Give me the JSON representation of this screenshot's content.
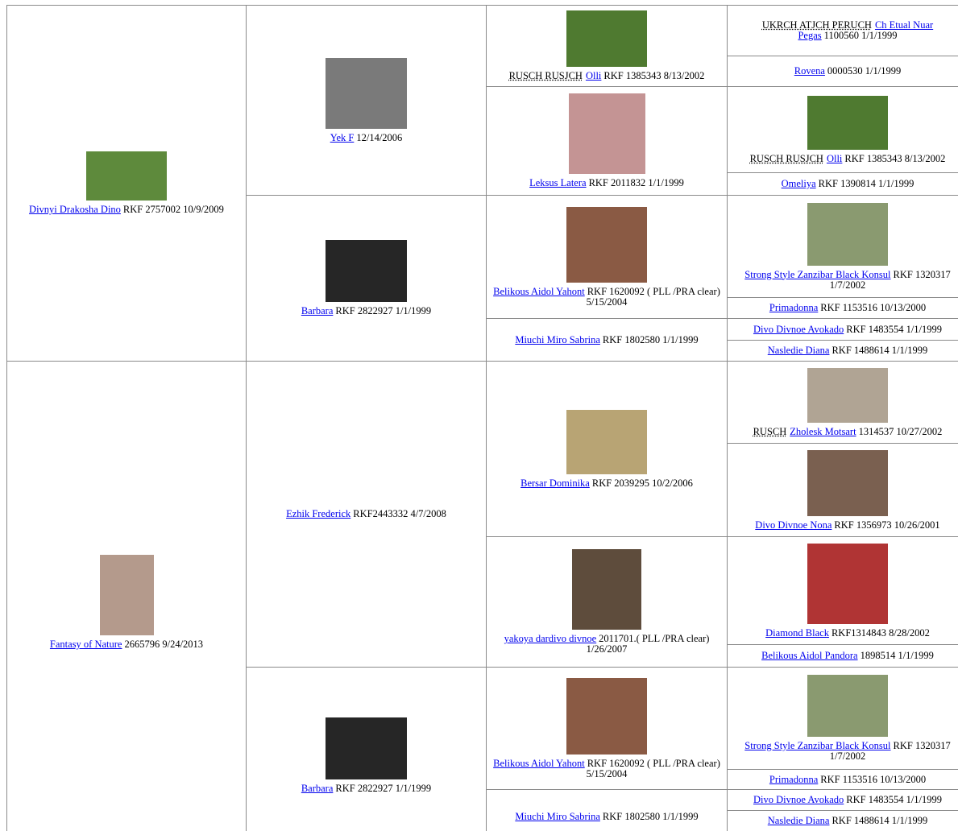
{
  "pedigree": [
    {
      "name": "Divnyi Drakosha Dino",
      "details": "RKF 2757002 10/9/2009"
    },
    {
      "name": "Fantasy of Nature",
      "details": "2665796 9/24/2013"
    },
    {
      "name": "Yek F",
      "details": "12/14/2006"
    },
    {
      "name": "Barbara",
      "details": "RKF 2822927 1/1/1999"
    },
    {
      "name": "Ezhik Frederick",
      "details": "RKF2443332 4/7/2008"
    },
    {
      "name": "Barbara",
      "details": "RKF 2822927 1/1/1999"
    },
    {
      "titles": "RUSCH RUSJCH",
      "name": "Olli",
      "details": "RKF 1385343 8/13/2002"
    },
    {
      "name": "Leksus Latera",
      "details": "RKF 2011832 1/1/1999"
    },
    {
      "name": "Belikous Aidol Yahont",
      "details": "RKF 1620092 ( PLL /PRA clear) 5/15/2004"
    },
    {
      "name": "Miuchi Miro Sabrina",
      "details": "RKF 1802580 1/1/1999"
    },
    {
      "name": "Bersar Dominika",
      "details": "RKF 2039295 10/2/2006"
    },
    {
      "name": "yakoya dardivo divnoe",
      "details": "2011701.( PLL /PRA clear) 1/26/2007"
    },
    {
      "name": "Belikous Aidol Yahont",
      "details": "RKF 1620092 ( PLL /PRA clear) 5/15/2004"
    },
    {
      "name": "Miuchi Miro Sabrina",
      "details": "RKF 1802580 1/1/1999"
    },
    {
      "titles": "UKRCH ATJCH PERUCH",
      "name": "Ch Etual Nuar Pegas",
      "details": "1100560 1/1/1999"
    },
    {
      "name": "Rovena",
      "details": "0000530 1/1/1999"
    },
    {
      "titles": "RUSCH RUSJCH",
      "name": "Olli",
      "details": "RKF 1385343 8/13/2002"
    },
    {
      "name": "Omeliya",
      "details": "RKF 1390814 1/1/1999"
    },
    {
      "name": "Strong Style Zanzibar Black Konsul",
      "details": "RKF 1320317 1/7/2002"
    },
    {
      "name": "Primadonna",
      "details": "RKF 1153516 10/13/2000"
    },
    {
      "name": "Divo Divnoe Avokado",
      "details": "RKF 1483554 1/1/1999"
    },
    {
      "name": "Nasledie Diana",
      "details": "RKF 1488614 1/1/1999"
    },
    {
      "titles": "RUSCH",
      "name": "Zholesk Motsart",
      "details": "1314537 10/27/2002"
    },
    {
      "name": "Divo Divnoe Nona",
      "details": "RKF 1356973 10/26/2001"
    },
    {
      "name": "Diamond Black",
      "details": "RKF1314843 8/28/2002"
    },
    {
      "name": "Belikous Aidol Pandora",
      "details": "1898514 1/1/1999"
    },
    {
      "name": "Strong Style Zanzibar Black Konsul",
      "details": "RKF 1320317 1/7/2002"
    },
    {
      "name": "Primadonna",
      "details": "RKF 1153516 10/13/2000"
    },
    {
      "name": "Divo Divnoe Avokado",
      "details": "RKF 1483554 1/1/1999"
    },
    {
      "name": "Nasledie Diana",
      "details": "RKF 1488614 1/1/1999"
    }
  ]
}
